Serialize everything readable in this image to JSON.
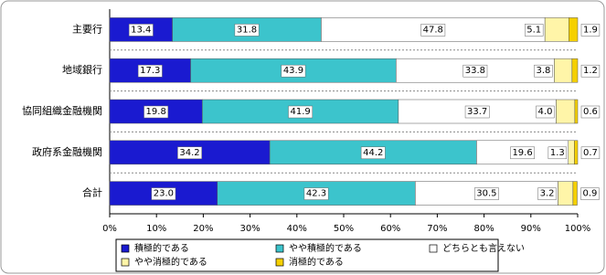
{
  "chart_data": {
    "type": "stacked-bar-horizontal",
    "categories": [
      "主要行",
      "地域銀行",
      "協同組織金融機関",
      "政府系金融機関",
      "合計"
    ],
    "series": [
      {
        "name": "積極的である",
        "color": "#1a1ad0",
        "values": [
          13.4,
          17.3,
          19.8,
          34.2,
          23.0
        ],
        "value_labels": [
          "13.4",
          "17.3",
          "19.8",
          "34.2",
          "23.0"
        ]
      },
      {
        "name": "やや積極的である",
        "color": "#3cc4cc",
        "values": [
          31.8,
          43.9,
          41.9,
          44.2,
          42.3
        ],
        "value_labels": [
          "31.8",
          "43.9",
          "41.9",
          "44.2",
          "42.3"
        ]
      },
      {
        "name": "どちらとも言えない",
        "color": "#ffffff",
        "values": [
          47.8,
          33.8,
          33.7,
          19.6,
          30.5
        ],
        "value_labels": [
          "47.8",
          "33.8",
          "33.7",
          "19.6",
          "30.5"
        ]
      },
      {
        "name": "やや消極的である",
        "color": "#fff5a8",
        "values": [
          5.1,
          3.8,
          4.0,
          1.3,
          3.2
        ],
        "value_labels": [
          "5.1",
          "3.8",
          "4.0",
          "1.3",
          "3.2"
        ]
      },
      {
        "name": "消極的である",
        "color": "#f5d000",
        "values": [
          1.9,
          1.2,
          0.6,
          0.7,
          0.9
        ],
        "value_labels": [
          "1.9",
          "1.2",
          "0.6",
          "0.7",
          "0.9"
        ]
      }
    ],
    "xlim": [
      0,
      100
    ],
    "xticks": [
      {
        "value": 0,
        "label": "0%"
      },
      {
        "value": 10,
        "label": "10%"
      },
      {
        "value": 20,
        "label": "20%"
      },
      {
        "value": 30,
        "label": "30%"
      },
      {
        "value": 40,
        "label": "40%"
      },
      {
        "value": 50,
        "label": "50%"
      },
      {
        "value": 60,
        "label": "60%"
      },
      {
        "value": 70,
        "label": "70%"
      },
      {
        "value": 80,
        "label": "80%"
      },
      {
        "value": 90,
        "label": "90%"
      },
      {
        "value": 100,
        "label": "100%"
      }
    ]
  }
}
